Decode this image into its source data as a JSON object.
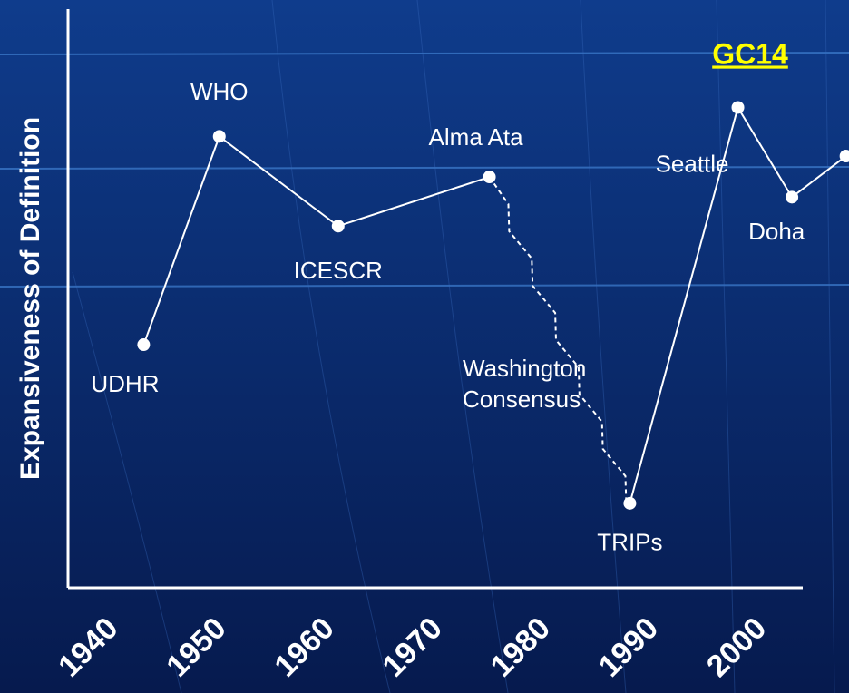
{
  "chart_data": {
    "type": "line",
    "title": "GC14",
    "y_label": "Expansiveness of Definition",
    "x": [
      1945,
      1952,
      1963,
      1977,
      1990,
      2000,
      2005,
      2010
    ],
    "series": [
      {
        "name": null,
        "color": "#ffffff",
        "values": [
          42,
          78,
          62.5,
          71,
          14.6,
          83,
          67.5,
          74.6
        ],
        "point_labels": [
          "UDHR",
          "WHO",
          "ICESCR",
          "Alma Ata",
          "TRIPs",
          "Seattle",
          "Doha",
          null
        ],
        "line_style": [
          "solid",
          "solid",
          "solid",
          "dashed",
          "solid",
          "solid",
          "solid"
        ]
      }
    ],
    "annotations": [
      "Washington",
      "Consensus"
    ],
    "xlim": [
      1938,
      2006
    ],
    "xticks": [
      1940,
      1950,
      1960,
      1970,
      1980,
      1990,
      2000
    ],
    "ylim": [
      0,
      100
    ]
  }
}
